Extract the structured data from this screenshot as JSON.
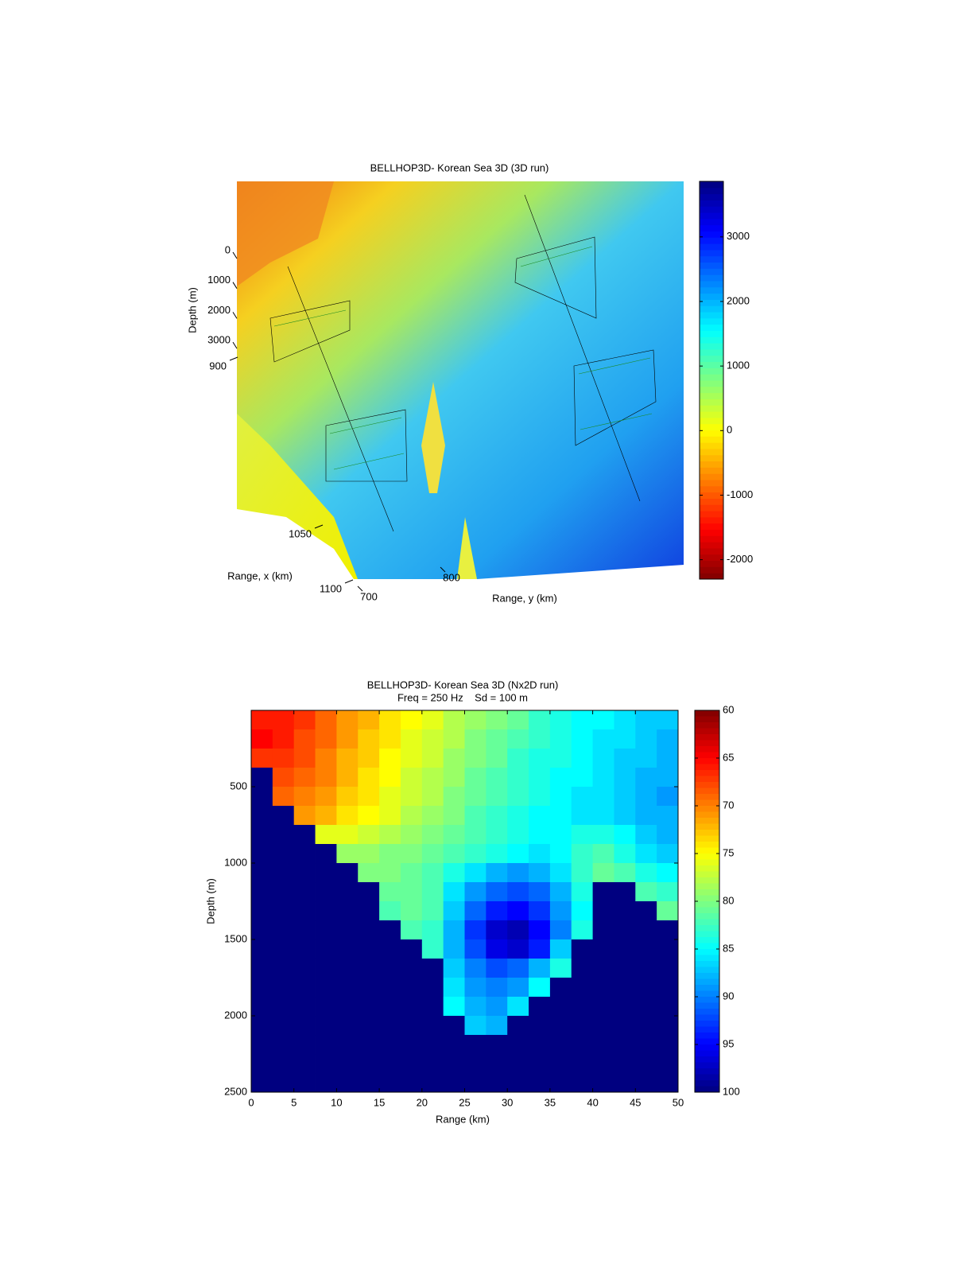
{
  "chart_data": [
    {
      "type": "surface3d",
      "title": "BELLHOP3D- Korean Sea 3D (3D run)",
      "zlabel": "Depth (m)",
      "xlabel": "Range, x (km)",
      "ylabel": "Range, y (km)",
      "zticks": [
        0,
        1000,
        2000,
        3000
      ],
      "xticks": [
        900,
        1050,
        1100
      ],
      "yticks": [
        700,
        800
      ],
      "colormap": "jet_r",
      "clim": [
        -2300,
        3860
      ],
      "cticks": [
        -2000,
        -1000,
        0,
        1000,
        2000,
        3000
      ]
    },
    {
      "type": "heatmap",
      "title": "BELLHOP3D- Korean Sea 3D (Nx2D run)",
      "subtitle": "Freq = 250 Hz    Sd = 100 m",
      "xlabel": "Range (km)",
      "ylabel": "Depth (m)",
      "xlim": [
        0,
        50
      ],
      "xticks": [
        0,
        5,
        10,
        15,
        20,
        25,
        30,
        35,
        40,
        45,
        50
      ],
      "ylim": [
        0,
        2500
      ],
      "yticks": [
        500,
        1000,
        1500,
        2000,
        2500
      ],
      "y_reversed": true,
      "colormap": "jet_r",
      "clim": [
        60,
        100
      ],
      "cticks": [
        60,
        65,
        70,
        75,
        80,
        85,
        90,
        95,
        100
      ],
      "colorbar_reversed": true,
      "x": [
        1.25,
        3.75,
        6.25,
        8.75,
        11.25,
        13.75,
        16.25,
        18.75,
        21.25,
        23.75,
        26.25,
        28.75,
        31.25,
        33.75,
        36.25,
        38.75,
        41.25,
        43.75,
        46.25,
        48.75
      ],
      "y": [
        62.5,
        187.5,
        312.5,
        437.5,
        562.5,
        687.5,
        812.5,
        937.5,
        1062.5,
        1187.5,
        1312.5,
        1437.5,
        1562.5,
        1687.5,
        1812.5,
        1937.5,
        2062.5,
        2187.5,
        2312.5,
        2437.5
      ],
      "z": [
        [
          66,
          66,
          67,
          69,
          71,
          72,
          74,
          75,
          76,
          78,
          79,
          80,
          81,
          83,
          84,
          85,
          85,
          86,
          87,
          87
        ],
        [
          65,
          66,
          68,
          69,
          71,
          73,
          74,
          76,
          77,
          78,
          80,
          81,
          82,
          83,
          84,
          85,
          86,
          86,
          87,
          88
        ],
        [
          67,
          67,
          68,
          70,
          72,
          73,
          75,
          76,
          77,
          79,
          80,
          81,
          83,
          84,
          84,
          85,
          86,
          87,
          87,
          88
        ],
        [
          100,
          68,
          69,
          70,
          72,
          74,
          75,
          77,
          78,
          79,
          81,
          82,
          83,
          84,
          85,
          85,
          86,
          87,
          88,
          88
        ],
        [
          100,
          69,
          70,
          71,
          73,
          74,
          76,
          77,
          78,
          80,
          81,
          82,
          83,
          84,
          85,
          86,
          86,
          87,
          88,
          89
        ],
        [
          100,
          100,
          71,
          72,
          74,
          75,
          76,
          78,
          79,
          80,
          82,
          83,
          84,
          85,
          85,
          86,
          86,
          87,
          88,
          88
        ],
        [
          100,
          100,
          100,
          76,
          76,
          77,
          78,
          79,
          80,
          81,
          82,
          83,
          84,
          85,
          85,
          84,
          84,
          85,
          87,
          88
        ],
        [
          100,
          100,
          100,
          100,
          79,
          79,
          80,
          80,
          81,
          82,
          83,
          84,
          85,
          86,
          85,
          83,
          82,
          84,
          86,
          87
        ],
        [
          100,
          100,
          100,
          100,
          100,
          80,
          80,
          81,
          82,
          84,
          86,
          88,
          89,
          88,
          86,
          83,
          81,
          82,
          84,
          85
        ],
        [
          100,
          100,
          100,
          100,
          100,
          100,
          81,
          81,
          82,
          86,
          89,
          91,
          92,
          91,
          88,
          84,
          100,
          100,
          82,
          83
        ],
        [
          100,
          100,
          100,
          100,
          100,
          100,
          82,
          81,
          82,
          87,
          91,
          94,
          95,
          93,
          89,
          85,
          100,
          100,
          100,
          81
        ],
        [
          100,
          100,
          100,
          100,
          100,
          100,
          100,
          82,
          83,
          88,
          93,
          97,
          98,
          95,
          90,
          84,
          100,
          100,
          100,
          100
        ],
        [
          100,
          100,
          100,
          100,
          100,
          100,
          100,
          100,
          83,
          88,
          92,
          96,
          97,
          94,
          87,
          100,
          100,
          100,
          100,
          100
        ],
        [
          100,
          100,
          100,
          100,
          100,
          100,
          100,
          100,
          100,
          87,
          90,
          92,
          91,
          88,
          84,
          100,
          100,
          100,
          100,
          100
        ],
        [
          100,
          100,
          100,
          100,
          100,
          100,
          100,
          100,
          100,
          86,
          89,
          90,
          89,
          85,
          100,
          100,
          100,
          100,
          100,
          100
        ],
        [
          100,
          100,
          100,
          100,
          100,
          100,
          100,
          100,
          100,
          85,
          88,
          89,
          86,
          100,
          100,
          100,
          100,
          100,
          100,
          100
        ],
        [
          100,
          100,
          100,
          100,
          100,
          100,
          100,
          100,
          100,
          100,
          87,
          88,
          100,
          100,
          100,
          100,
          100,
          100,
          100,
          100
        ],
        [
          100,
          100,
          100,
          100,
          100,
          100,
          100,
          100,
          100,
          100,
          100,
          100,
          100,
          100,
          100,
          100,
          100,
          100,
          100,
          100
        ],
        [
          100,
          100,
          100,
          100,
          100,
          100,
          100,
          100,
          100,
          100,
          100,
          100,
          100,
          100,
          100,
          100,
          100,
          100,
          100,
          100
        ],
        [
          100,
          100,
          100,
          100,
          100,
          100,
          100,
          100,
          100,
          100,
          100,
          100,
          100,
          100,
          100,
          100,
          100,
          100,
          100,
          100
        ]
      ]
    }
  ]
}
